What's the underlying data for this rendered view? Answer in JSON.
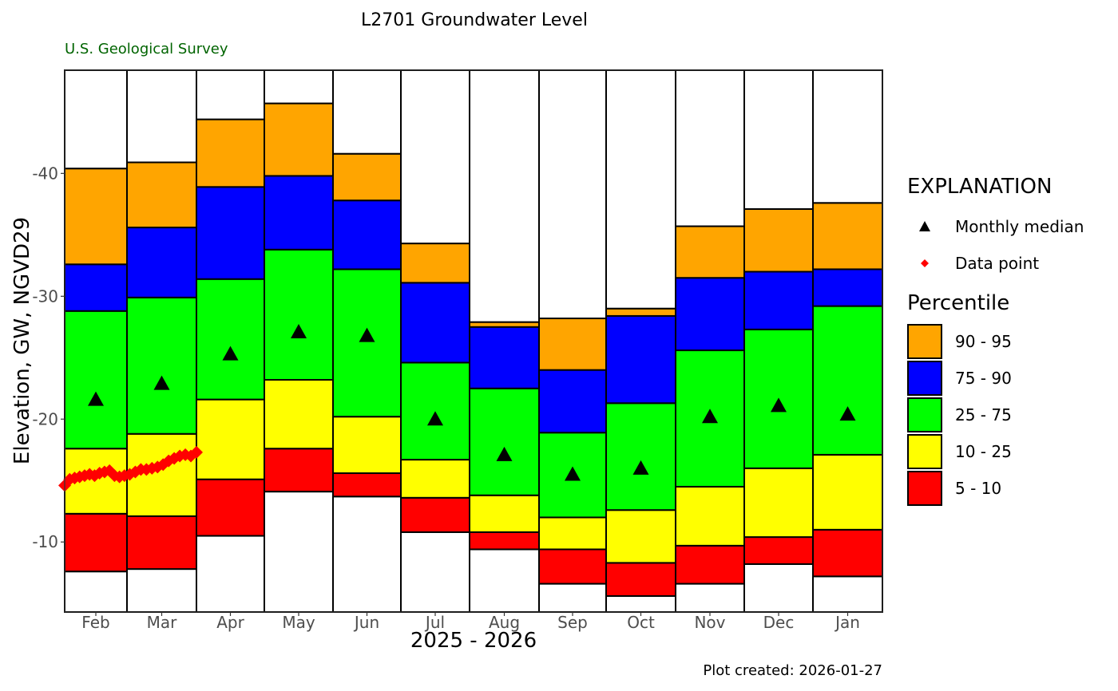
{
  "chart_data": {
    "type": "bar",
    "title": "L2701 Groundwater Level",
    "subtitle": "U.S. Geological Survey",
    "xlabel": "2025 - 2026",
    "ylabel": "Elevation, GW, NGVD29",
    "caption": "Plot created: 2026-01-27",
    "y_reversed": true,
    "ylim": [
      4.3,
      48.4
    ],
    "y_ticks": [
      {
        "value": 40,
        "label": "-40"
      },
      {
        "value": 30,
        "label": "-30"
      },
      {
        "value": 20,
        "label": "-20"
      },
      {
        "value": 10,
        "label": "-10"
      }
    ],
    "categories": [
      "Feb",
      "Mar",
      "Apr",
      "May",
      "Jun",
      "Jul",
      "Aug",
      "Sep",
      "Oct",
      "Nov",
      "Dec",
      "Jan"
    ],
    "month_index_range": [
      0,
      12
    ],
    "percentile_bounds": {
      "p5": [
        7.6,
        7.8,
        10.5,
        14.1,
        13.7,
        10.8,
        9.4,
        6.6,
        5.6,
        6.6,
        8.2,
        7.2
      ],
      "p10": [
        12.3,
        12.1,
        15.1,
        17.6,
        15.6,
        13.6,
        10.8,
        9.4,
        8.3,
        9.7,
        10.4,
        11.0
      ],
      "p25": [
        17.6,
        18.8,
        21.6,
        23.2,
        20.2,
        16.7,
        13.8,
        12.0,
        12.6,
        14.5,
        16.0,
        17.1
      ],
      "p75": [
        28.8,
        29.9,
        31.4,
        33.8,
        32.2,
        24.6,
        22.5,
        18.9,
        21.3,
        25.6,
        27.3,
        29.2
      ],
      "p90": [
        32.6,
        35.6,
        38.9,
        39.8,
        37.8,
        31.1,
        27.5,
        24.0,
        28.4,
        31.5,
        32.0,
        32.2
      ],
      "p95": [
        40.4,
        40.9,
        44.4,
        45.7,
        41.6,
        34.3,
        27.9,
        28.2,
        29.0,
        35.7,
        37.1,
        37.6
      ]
    },
    "column_max": 48.4,
    "column_min": 4.3,
    "monthly_median": [
      21.6,
      22.9,
      25.3,
      27.1,
      26.8,
      20.0,
      17.1,
      15.5,
      16.0,
      20.2,
      21.1,
      20.4
    ],
    "data_points": {
      "x_month_index": [
        0.0,
        0.08,
        0.16,
        0.24,
        0.32,
        0.4,
        0.48,
        0.56,
        0.64,
        0.72,
        0.8,
        0.88,
        0.96,
        1.04,
        1.12,
        1.2,
        1.28,
        1.36,
        1.44,
        1.52,
        1.6,
        1.68,
        1.76,
        1.84,
        1.92,
        2.0
      ],
      "y": [
        14.6,
        15.1,
        15.2,
        15.3,
        15.4,
        15.5,
        15.4,
        15.6,
        15.7,
        15.8,
        15.4,
        15.3,
        15.4,
        15.5,
        15.7,
        15.9,
        15.9,
        16.0,
        16.1,
        16.3,
        16.6,
        16.8,
        17.0,
        17.1,
        17.0,
        17.3
      ]
    },
    "legend": {
      "title": "EXPLANATION",
      "placement": "right",
      "symbols": [
        {
          "label": "Monthly median",
          "shape": "triangle",
          "color": "#000000"
        },
        {
          "label": "Data point",
          "shape": "diamond",
          "color": "#ff0000"
        }
      ],
      "percentile_title": "Percentile",
      "percentiles": [
        {
          "label": "90 - 95",
          "color": "#ffa500"
        },
        {
          "label": "75 - 90",
          "color": "#0000ff"
        },
        {
          "label": "25 - 75",
          "color": "#00ff00"
        },
        {
          "label": "10 - 25",
          "color": "#ffff00"
        },
        {
          "label": "5 - 10",
          "color": "#ff0000"
        }
      ]
    },
    "colors": {
      "outside": "#ffffff",
      "p5_10": "#ff0000",
      "p10_25": "#ffff00",
      "p25_75": "#00ff00",
      "p75_90": "#0000ff",
      "p90_95": "#ffa500",
      "median": "#000000",
      "data_point": "#ff0000"
    }
  }
}
